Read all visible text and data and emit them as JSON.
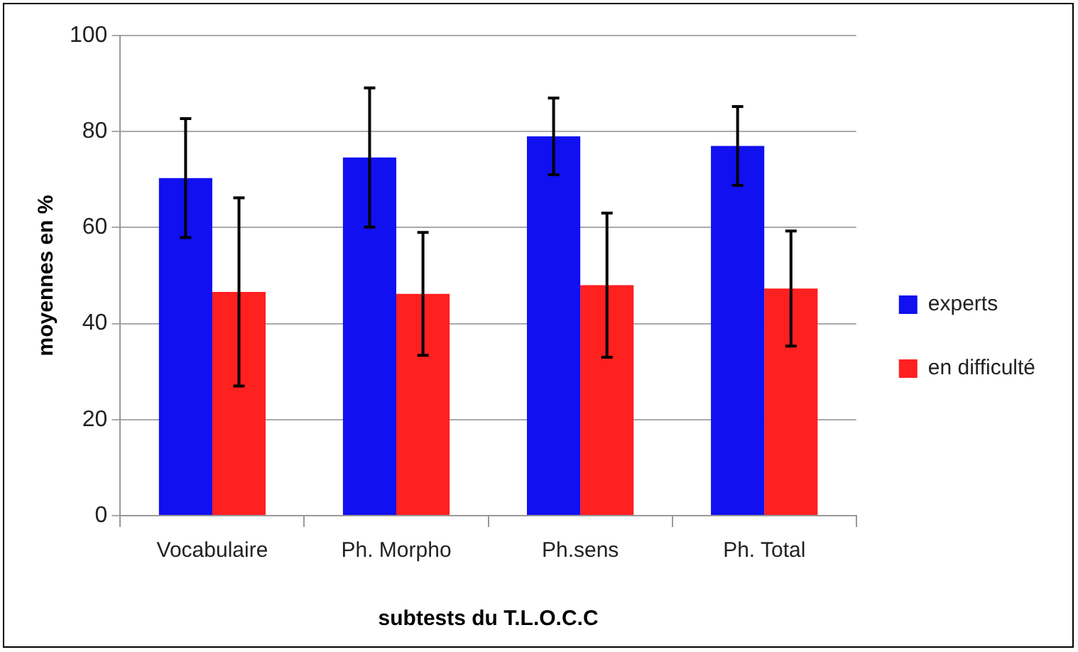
{
  "chart_data": {
    "type": "bar",
    "xlabel": "subtests du T.L.O.C.C",
    "ylabel": "moyennes en %",
    "categories": [
      "Vocabulaire",
      "Ph. Morpho",
      "Ph.sens",
      "Ph. Total"
    ],
    "series": [
      {
        "name": "experts",
        "color": "#1010f0",
        "values": [
          70.3,
          74.6,
          79,
          77
        ],
        "errors": [
          12.4,
          14.5,
          8,
          8.2
        ]
      },
      {
        "name": "en difficulté",
        "color": "#ff2020",
        "values": [
          46.6,
          46.2,
          48,
          47.3
        ],
        "errors": [
          19.6,
          12.8,
          15,
          12
        ]
      }
    ],
    "ylim": [
      0,
      100
    ],
    "yticks": [
      0,
      20,
      40,
      60,
      80,
      100
    ],
    "grid": "y",
    "legend": "right"
  }
}
